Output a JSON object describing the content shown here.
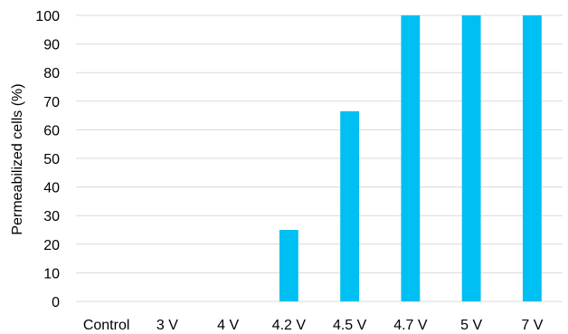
{
  "chart_data": {
    "type": "bar",
    "categories": [
      "Control",
      "3 V",
      "4 V",
      "4.2 V",
      "4.5 V",
      "4.7 V",
      "5 V",
      "7 V"
    ],
    "values": [
      0,
      0,
      0,
      25,
      66.5,
      100,
      100,
      100
    ],
    "title": "",
    "xlabel": "",
    "ylabel": "Permeabilized cells (%)",
    "ylim": [
      0,
      100
    ],
    "yticks": [
      0,
      10,
      20,
      30,
      40,
      50,
      60,
      70,
      80,
      90,
      100
    ],
    "grid": true,
    "bar_color": "#00BFF3",
    "grid_color": "#D9D9D9"
  }
}
